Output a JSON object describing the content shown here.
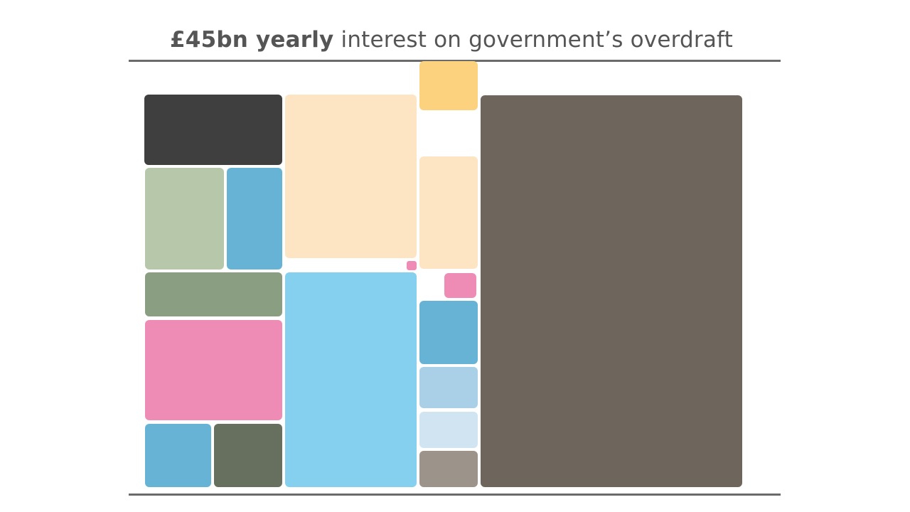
{
  "title": {
    "bold_part": "£45bn yearly",
    "rest": " interest on government’s overdraft"
  },
  "chart_data": {
    "type": "treemap",
    "title": "£45bn yearly interest on government’s overdraft",
    "legend": "none",
    "data_labels": "none",
    "blocks": [
      {
        "key": "dark-charcoal",
        "color": "#3f3f3f"
      },
      {
        "key": "sage",
        "color": "#b7c8aa"
      },
      {
        "key": "blue-small",
        "color": "#66b3d6"
      },
      {
        "key": "dark-sage",
        "color": "#8a9e82"
      },
      {
        "key": "pink-large",
        "color": "#ef8cb6"
      },
      {
        "key": "blue-bottom-left",
        "color": "#66b3d6"
      },
      {
        "key": "slate-green",
        "color": "#67705f"
      },
      {
        "key": "peach-large",
        "color": "#fde4c2"
      },
      {
        "key": "pink-tiny",
        "color": "#ef8cb6"
      },
      {
        "key": "sky-blue-large",
        "color": "#85d0ee"
      },
      {
        "key": "yellow",
        "color": "#fdd27e"
      },
      {
        "key": "peach-small",
        "color": "#fde4c2"
      },
      {
        "key": "pink-small",
        "color": "#ef8cb6"
      },
      {
        "key": "blue-medium",
        "color": "#66b3d6"
      },
      {
        "key": "light-blue",
        "color": "#a9d0e6"
      },
      {
        "key": "pale-blue",
        "color": "#d0e4f1"
      },
      {
        "key": "grey-taupe",
        "color": "#9c948b"
      },
      {
        "key": "interest-overdraft",
        "color": "#6e665c"
      }
    ]
  }
}
